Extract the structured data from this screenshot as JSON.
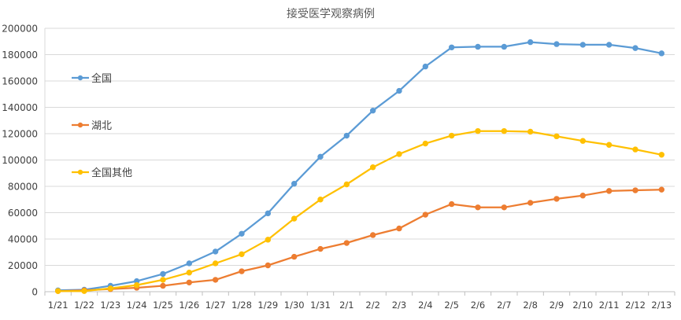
{
  "chart_data": {
    "type": "line",
    "title": "接受医学观察病例",
    "xlabel": "",
    "ylabel": "",
    "ylim": [
      0,
      200000
    ],
    "y_ticks": [
      0,
      20000,
      40000,
      60000,
      80000,
      100000,
      120000,
      140000,
      160000,
      180000,
      200000
    ],
    "y_tick_labels": [
      "0",
      "20000",
      "40000",
      "60000",
      "80000",
      "100000",
      "120000",
      "140000",
      "160000",
      "180000",
      "200000"
    ],
    "grid": "horizontal",
    "legend_position": "left-inside",
    "categories": [
      "1/21",
      "1/22",
      "1/23",
      "1/24",
      "1/25",
      "1/26",
      "1/27",
      "1/28",
      "1/29",
      "1/30",
      "1/31",
      "2/1",
      "2/2",
      "2/3",
      "2/4",
      "2/5",
      "2/6",
      "2/7",
      "2/8",
      "2/9",
      "2/10",
      "2/11",
      "2/12",
      "2/13"
    ],
    "series": [
      {
        "name": "全国",
        "color": "#5B9BD5",
        "values": [
          1000,
          1500,
          4500,
          8000,
          13500,
          21500,
          30500,
          44000,
          59500,
          82000,
          102500,
          118500,
          137500,
          152500,
          171000,
          185500,
          186000,
          186000,
          189500,
          188000,
          187500,
          187500,
          185000,
          181000
        ]
      },
      {
        "name": "湖北",
        "color": "#ED7D31",
        "values": [
          500,
          1000,
          2000,
          3000,
          4500,
          7000,
          9000,
          15500,
          20000,
          26500,
          32500,
          37000,
          43000,
          48000,
          58500,
          66500,
          64000,
          64000,
          67500,
          70500,
          73000,
          76500,
          77000,
          77500
        ]
      },
      {
        "name": "全国其他",
        "color": "#FFC000",
        "values": [
          500,
          500,
          2500,
          5000,
          9000,
          14500,
          21500,
          28500,
          39500,
          55500,
          70000,
          81500,
          94500,
          104500,
          112500,
          118500,
          122000,
          122000,
          121500,
          118000,
          114500,
          111500,
          108000,
          104000
        ]
      }
    ]
  }
}
